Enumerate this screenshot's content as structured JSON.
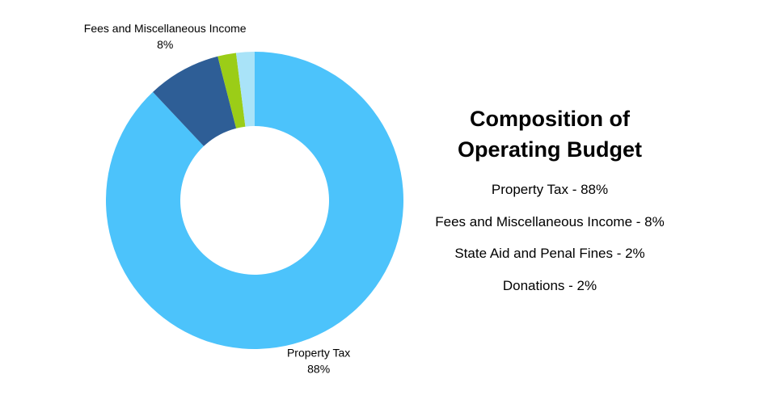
{
  "chart_data": {
    "type": "donut",
    "title": "Composition of Operating Budget",
    "categories": [
      "Property Tax",
      "Fees and Miscellaneous Income",
      "State Aid and Penal Fines",
      "Donations"
    ],
    "values": [
      88,
      8,
      2,
      2
    ],
    "value_labels": [
      "88%",
      "8%",
      null,
      null
    ],
    "legend_labels": [
      "Property Tax - 88%",
      "Fees and Miscellaneous Income - 8%",
      "State Aid and Penal Fines - 2%",
      "Donations - 2%"
    ],
    "colors": [
      "#4cc3fb",
      "#2e5e96",
      "#9bcd17",
      "#a9e3f8"
    ]
  }
}
